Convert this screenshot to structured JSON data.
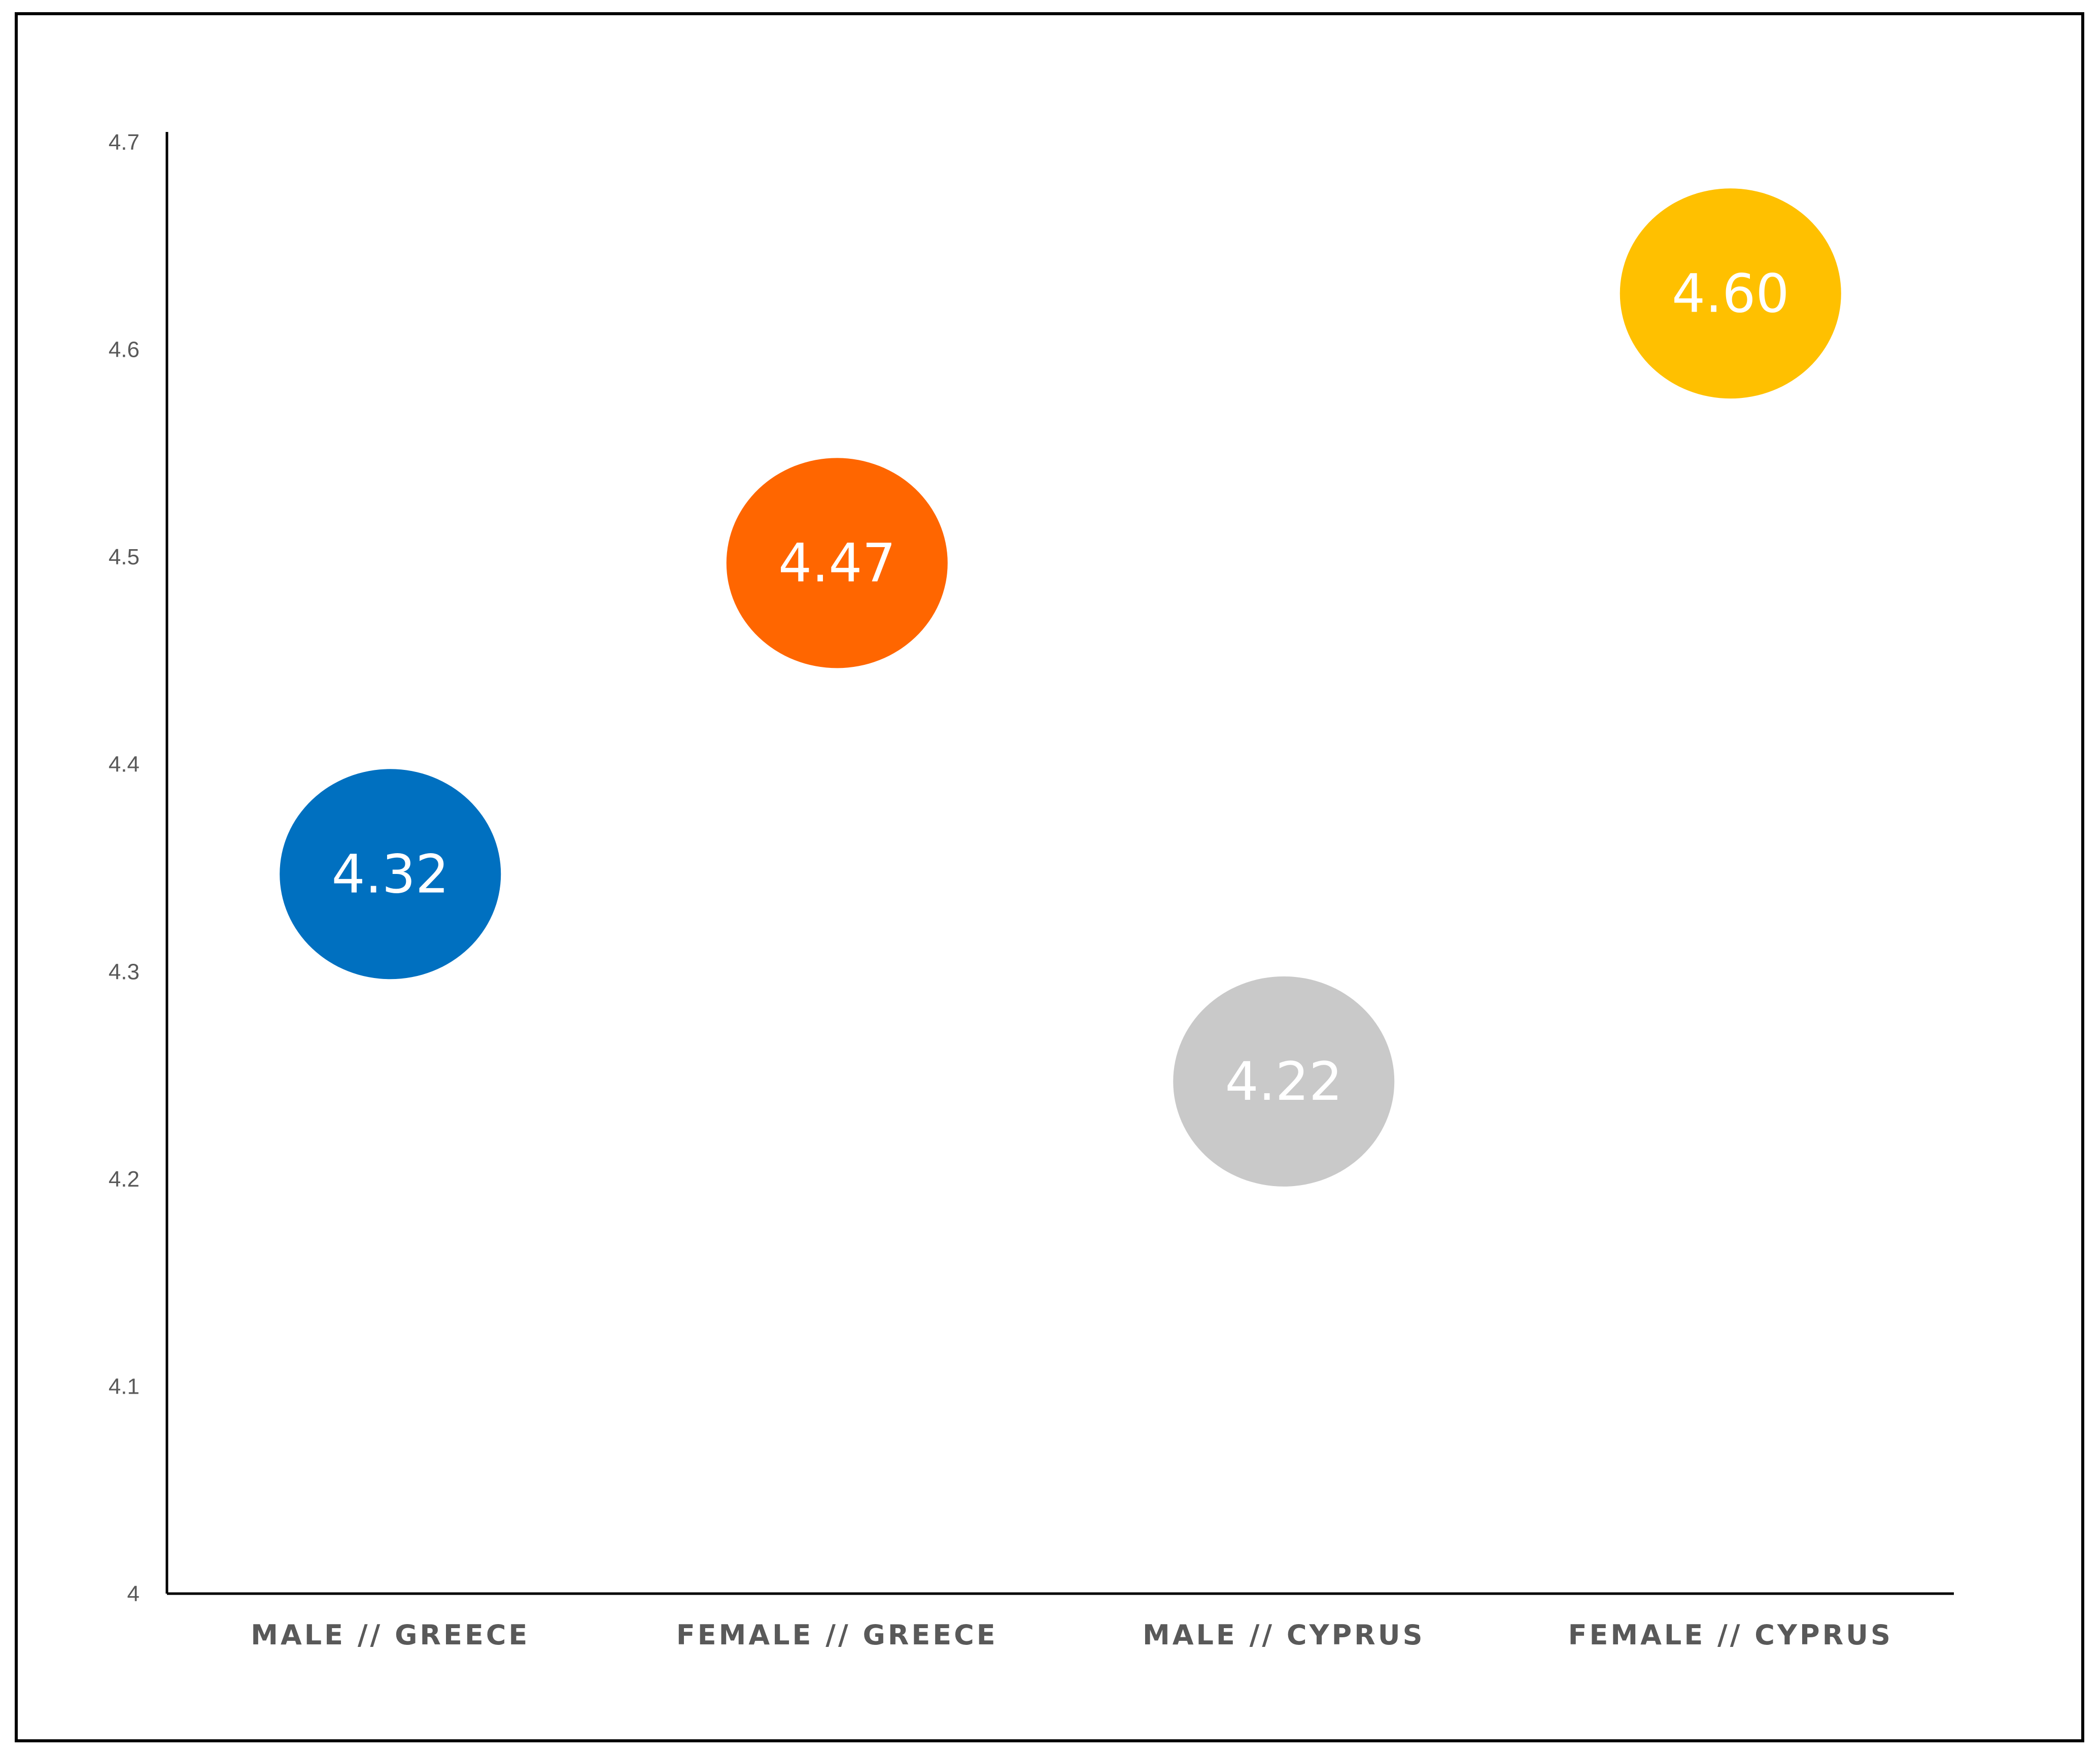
{
  "chart_data": {
    "type": "scatter",
    "title": "",
    "xlabel": "",
    "ylabel": "",
    "ylim": [
      4,
      4.7
    ],
    "yticks": [
      "4",
      "4.1",
      "4.2",
      "4.3",
      "4.4",
      "4.5",
      "4.6",
      "4.7"
    ],
    "categories": [
      "MALE // GREECE",
      "FEMALE // GREECE",
      "MALE // CYPRUS",
      "FEMALE // CYPRUS"
    ],
    "values": [
      4.32,
      4.47,
      4.22,
      4.6
    ],
    "data_labels": [
      "4.32",
      "4.47",
      "4.22",
      "4.60"
    ],
    "colors": [
      "#0070C0",
      "#FF6600",
      "#C9C9C9",
      "#FFC000"
    ],
    "grid": false,
    "legend": "none"
  }
}
